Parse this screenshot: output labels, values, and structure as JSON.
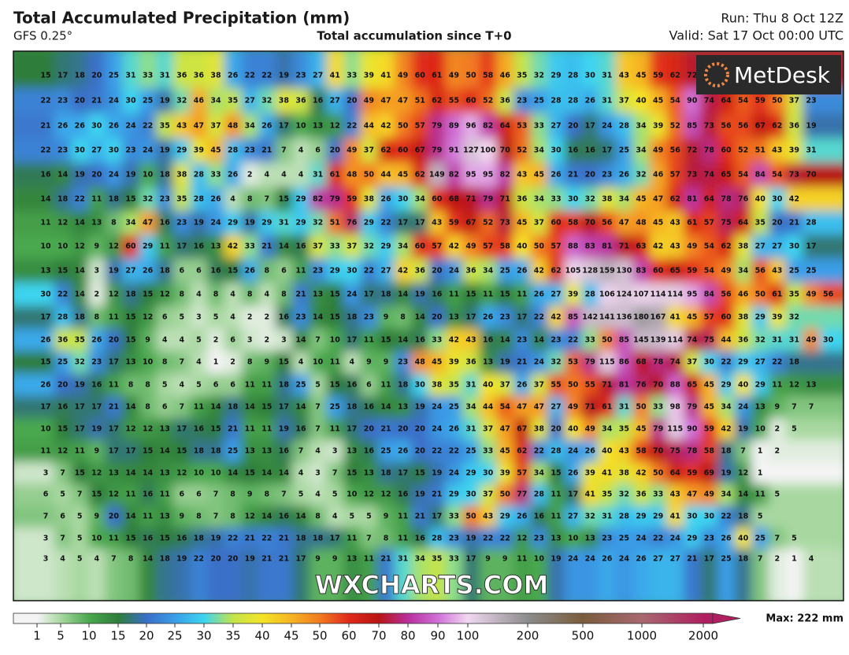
{
  "header": {
    "title": "Total Accumulated Precipitation (mm)",
    "model": "GFS 0.25°",
    "subtitle": "Total accumulation since T+0",
    "run": "Run: Thu 8 Oct 12Z",
    "valid": "Valid: Sat 17 Oct 00:00 UTC"
  },
  "logo": "MetDesk",
  "watermark": "WXCHARTS.COM",
  "grid": {
    "rows": [
      [
        15,
        17,
        18,
        20,
        25,
        31,
        33,
        31,
        36,
        36,
        38,
        26,
        22,
        22,
        19,
        23,
        27,
        41,
        33,
        39,
        41,
        49,
        60,
        61,
        49,
        50,
        58,
        46,
        35,
        32,
        29,
        28,
        30,
        31,
        43,
        45,
        59,
        62,
        72
      ],
      [
        22,
        23,
        20,
        21,
        24,
        30,
        25,
        19,
        32,
        46,
        34,
        35,
        27,
        32,
        38,
        36,
        16,
        27,
        20,
        49,
        47,
        47,
        51,
        62,
        55,
        60,
        52,
        36,
        23,
        25,
        28,
        28,
        26,
        31,
        37,
        40,
        45,
        54,
        90,
        74,
        64,
        54,
        59,
        50,
        37,
        23
      ],
      [
        21,
        26,
        26,
        30,
        26,
        24,
        22,
        35,
        43,
        47,
        37,
        48,
        34,
        26,
        17,
        10,
        13,
        12,
        22,
        44,
        42,
        50,
        57,
        79,
        89,
        96,
        82,
        64,
        53,
        33,
        27,
        20,
        17,
        24,
        28,
        34,
        39,
        52,
        85,
        73,
        56,
        56,
        67,
        62,
        36,
        19
      ],
      [
        22,
        23,
        30,
        27,
        30,
        23,
        24,
        19,
        29,
        39,
        45,
        28,
        23,
        21,
        7,
        4,
        6,
        20,
        49,
        37,
        62,
        60,
        67,
        79,
        91,
        127,
        100,
        70,
        52,
        34,
        30,
        16,
        16,
        17,
        25,
        34,
        49,
        56,
        72,
        78,
        60,
        52,
        51,
        43,
        39,
        31
      ],
      [
        16,
        14,
        19,
        20,
        24,
        19,
        10,
        18,
        38,
        28,
        33,
        26,
        2,
        4,
        4,
        4,
        31,
        61,
        48,
        50,
        44,
        45,
        62,
        149,
        82,
        95,
        95,
        82,
        43,
        45,
        26,
        21,
        20,
        23,
        26,
        32,
        46,
        57,
        73,
        74,
        65,
        54,
        84,
        54,
        73,
        70
      ],
      [
        14,
        18,
        22,
        11,
        18,
        15,
        32,
        23,
        35,
        28,
        26,
        4,
        8,
        7,
        15,
        29,
        82,
        79,
        59,
        38,
        26,
        30,
        34,
        60,
        68,
        71,
        79,
        71,
        36,
        34,
        33,
        30,
        32,
        38,
        34,
        45,
        47,
        62,
        81,
        64,
        78,
        76,
        40,
        30,
        42
      ],
      [
        11,
        12,
        14,
        13,
        8,
        34,
        47,
        16,
        23,
        19,
        24,
        29,
        19,
        29,
        31,
        29,
        32,
        51,
        76,
        29,
        22,
        17,
        17,
        43,
        59,
        67,
        52,
        73,
        45,
        37,
        60,
        58,
        70,
        56,
        47,
        48,
        45,
        43,
        61,
        57,
        75,
        64,
        35,
        20,
        21,
        28
      ],
      [
        10,
        10,
        12,
        9,
        12,
        60,
        29,
        11,
        17,
        16,
        13,
        42,
        33,
        21,
        14,
        16,
        37,
        33,
        37,
        32,
        29,
        34,
        60,
        57,
        42,
        49,
        57,
        58,
        40,
        50,
        57,
        88,
        83,
        81,
        71,
        63,
        42,
        43,
        49,
        54,
        62,
        38,
        27,
        27,
        30,
        17
      ],
      [
        13,
        15,
        14,
        3,
        19,
        27,
        26,
        18,
        6,
        6,
        16,
        15,
        26,
        8,
        6,
        11,
        23,
        29,
        30,
        22,
        27,
        42,
        36,
        20,
        24,
        36,
        34,
        25,
        26,
        42,
        62,
        105,
        128,
        159,
        130,
        83,
        60,
        65,
        59,
        54,
        49,
        34,
        56,
        43,
        25,
        25
      ],
      [
        30,
        22,
        14,
        2,
        12,
        18,
        15,
        12,
        8,
        4,
        8,
        4,
        8,
        4,
        8,
        21,
        13,
        15,
        24,
        17,
        18,
        14,
        19,
        16,
        11,
        15,
        11,
        15,
        11,
        26,
        27,
        39,
        28,
        106,
        124,
        107,
        114,
        114,
        95,
        84,
        56,
        46,
        50,
        61,
        35,
        49,
        56
      ],
      [
        17,
        28,
        18,
        8,
        11,
        15,
        12,
        6,
        5,
        3,
        5,
        4,
        2,
        2,
        16,
        23,
        14,
        15,
        18,
        23,
        9,
        8,
        14,
        20,
        13,
        17,
        26,
        23,
        17,
        22,
        42,
        85,
        142,
        141,
        136,
        180,
        167,
        41,
        45,
        57,
        60,
        38,
        29,
        39,
        32
      ],
      [
        26,
        36,
        35,
        26,
        20,
        15,
        9,
        4,
        4,
        5,
        2,
        6,
        3,
        2,
        3,
        14,
        7,
        10,
        17,
        11,
        15,
        14,
        16,
        33,
        42,
        43,
        16,
        14,
        23,
        14,
        23,
        22,
        33,
        50,
        85,
        145,
        139,
        114,
        74,
        75,
        44,
        36,
        32,
        31,
        31,
        49,
        30
      ],
      [
        15,
        25,
        32,
        23,
        17,
        13,
        10,
        8,
        7,
        4,
        1,
        2,
        8,
        9,
        15,
        4,
        10,
        11,
        4,
        9,
        9,
        23,
        48,
        45,
        39,
        36,
        13,
        19,
        21,
        24,
        32,
        53,
        79,
        115,
        86,
        68,
        78,
        74,
        37,
        30,
        22,
        29,
        27,
        22,
        18
      ],
      [
        26,
        20,
        19,
        16,
        11,
        8,
        8,
        5,
        4,
        5,
        6,
        6,
        11,
        11,
        18,
        25,
        5,
        15,
        16,
        6,
        11,
        18,
        30,
        38,
        35,
        31,
        40,
        37,
        26,
        37,
        55,
        50,
        55,
        71,
        81,
        76,
        70,
        88,
        65,
        45,
        29,
        40,
        29,
        11,
        12,
        13
      ],
      [
        17,
        16,
        17,
        17,
        21,
        14,
        8,
        6,
        7,
        11,
        14,
        18,
        14,
        15,
        17,
        14,
        7,
        25,
        18,
        16,
        14,
        13,
        19,
        24,
        25,
        34,
        44,
        54,
        47,
        47,
        27,
        49,
        71,
        61,
        31,
        50,
        33,
        98,
        79,
        45,
        34,
        24,
        13,
        9,
        7,
        7
      ],
      [
        10,
        15,
        17,
        19,
        17,
        12,
        12,
        13,
        17,
        16,
        15,
        21,
        11,
        11,
        19,
        16,
        7,
        11,
        17,
        20,
        21,
        20,
        20,
        24,
        26,
        31,
        37,
        47,
        67,
        38,
        20,
        40,
        49,
        34,
        35,
        45,
        79,
        115,
        90,
        59,
        42,
        19,
        10,
        2,
        5
      ],
      [
        11,
        12,
        11,
        9,
        17,
        17,
        15,
        14,
        15,
        18,
        18,
        25,
        13,
        13,
        16,
        7,
        4,
        3,
        13,
        16,
        25,
        26,
        20,
        22,
        22,
        25,
        33,
        45,
        62,
        22,
        28,
        24,
        26,
        40,
        43,
        58,
        70,
        75,
        78,
        58,
        18,
        7,
        1,
        2
      ],
      [
        3,
        7,
        15,
        12,
        13,
        14,
        14,
        13,
        12,
        10,
        10,
        14,
        15,
        14,
        14,
        4,
        3,
        7,
        15,
        13,
        18,
        17,
        15,
        19,
        24,
        29,
        30,
        39,
        57,
        34,
        15,
        26,
        39,
        41,
        38,
        42,
        50,
        64,
        59,
        69,
        19,
        12,
        1
      ],
      [
        6,
        5,
        7,
        15,
        12,
        11,
        16,
        11,
        6,
        6,
        7,
        8,
        9,
        8,
        7,
        5,
        4,
        5,
        10,
        12,
        12,
        16,
        19,
        21,
        29,
        30,
        37,
        50,
        77,
        28,
        11,
        17,
        41,
        35,
        32,
        36,
        33,
        43,
        47,
        49,
        34,
        14,
        11,
        5
      ],
      [
        7,
        6,
        5,
        9,
        20,
        14,
        11,
        13,
        9,
        8,
        7,
        8,
        12,
        14,
        16,
        14,
        8,
        4,
        5,
        5,
        9,
        11,
        21,
        17,
        33,
        50,
        43,
        29,
        26,
        16,
        11,
        27,
        32,
        31,
        28,
        29,
        29,
        41,
        30,
        30,
        22,
        18,
        5
      ],
      [
        3,
        7,
        5,
        10,
        11,
        15,
        16,
        15,
        16,
        18,
        19,
        22,
        21,
        22,
        21,
        18,
        18,
        17,
        11,
        7,
        8,
        11,
        16,
        28,
        23,
        19,
        22,
        22,
        12,
        23,
        13,
        10,
        13,
        23,
        25,
        24,
        22,
        24,
        29,
        23,
        26,
        40,
        25,
        7,
        5
      ],
      [
        3,
        4,
        5,
        4,
        7,
        8,
        14,
        18,
        19,
        22,
        20,
        20,
        19,
        21,
        21,
        17,
        9,
        9,
        13,
        11,
        21,
        31,
        34,
        35,
        33,
        17,
        9,
        9,
        11,
        10,
        19,
        24,
        24,
        26,
        24,
        26,
        27,
        27,
        21,
        17,
        25,
        18,
        7,
        2,
        1,
        4
      ]
    ]
  },
  "legend": {
    "ticks": [
      1,
      5,
      10,
      15,
      20,
      25,
      30,
      35,
      40,
      45,
      50,
      60,
      70,
      80,
      90,
      100,
      200,
      500,
      1000,
      2000
    ],
    "max_label": "Max: 222 mm"
  }
}
